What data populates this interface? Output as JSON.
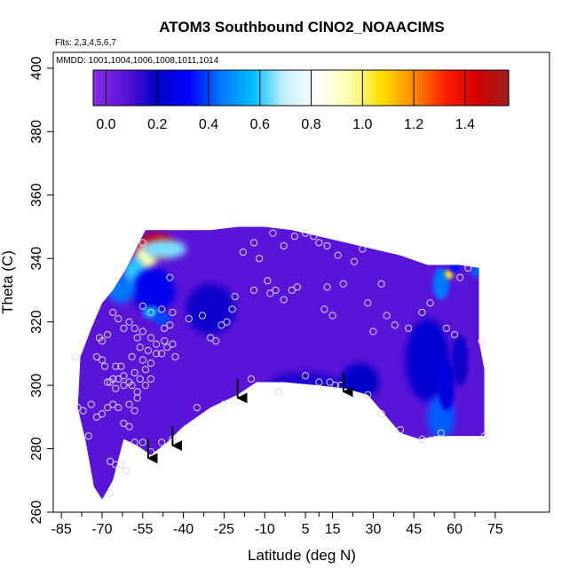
{
  "chart_data": {
    "type": "heatmap",
    "title": "ATOM3 Southbound ClNO2_NOAACIMS",
    "subtitle_flights": "Flts: 2,3,4,5,6,7",
    "subtitle_dates": "MMDD: 1001,1004,1006,1008,1011,1014",
    "xlabel": "Latitude (deg N)",
    "ylabel": "Theta (C)",
    "xlim": [
      -88,
      95
    ],
    "ylim": [
      260,
      405
    ],
    "x_ticks": [
      -85,
      -70,
      -55,
      -40,
      -25,
      -10,
      5,
      15,
      30,
      45,
      60,
      75
    ],
    "x_tick_labels": [
      "-85",
      "-70",
      "-55",
      "-40",
      "-25",
      "-10",
      "5",
      "15",
      "30",
      "45",
      "60",
      "75"
    ],
    "y_ticks": [
      260,
      280,
      300,
      320,
      340,
      360,
      380,
      400
    ],
    "y_tick_labels": [
      "260",
      "280",
      "300",
      "320",
      "340",
      "360",
      "380",
      "400"
    ],
    "colorbar_ticks": [
      0.0,
      0.2,
      0.4,
      0.6,
      0.8,
      1.0,
      1.2,
      1.4
    ],
    "colorbar_tick_labels": [
      "0.0",
      "0.2",
      "0.4",
      "0.6",
      "0.8",
      "1.0",
      "1.2",
      "1.4"
    ],
    "colorbar_range": [
      -0.05,
      1.57
    ],
    "colormap": [
      "#8a2be2",
      "#5a14d8",
      "#0000c8",
      "#0000ff",
      "#0078ff",
      "#00bfff",
      "#c8f0ff",
      "#ffffff",
      "#ffffb0",
      "#ffe000",
      "#ff8c00",
      "#ff2000",
      "#d40000",
      "#a02020"
    ],
    "field_color": "#5a14d8",
    "outline": [
      [
        -78,
        309
      ],
      [
        -79,
        293
      ],
      [
        -76,
        282
      ],
      [
        -73,
        268
      ],
      [
        -70,
        264
      ],
      [
        -66,
        270
      ],
      [
        -62,
        283
      ],
      [
        -57,
        281
      ],
      [
        -52,
        278
      ],
      [
        -46,
        282
      ],
      [
        -40,
        287
      ],
      [
        -30,
        293
      ],
      [
        -20,
        297
      ],
      [
        -13,
        301
      ],
      [
        -3,
        301
      ],
      [
        10,
        300
      ],
      [
        20,
        299
      ],
      [
        28,
        297
      ],
      [
        35,
        290
      ],
      [
        40,
        285
      ],
      [
        47,
        283
      ],
      [
        53,
        284
      ],
      [
        71,
        284
      ],
      [
        71,
        305
      ],
      [
        69,
        314
      ],
      [
        69,
        337
      ],
      [
        62,
        338
      ],
      [
        50,
        338
      ],
      [
        40,
        341
      ],
      [
        30,
        343
      ],
      [
        20,
        345
      ],
      [
        10,
        347
      ],
      [
        0,
        349
      ],
      [
        -10,
        350
      ],
      [
        -20,
        350
      ],
      [
        -30,
        349
      ],
      [
        -40,
        349
      ],
      [
        -54,
        349
      ],
      [
        -57,
        344
      ],
      [
        -61,
        337
      ],
      [
        -66,
        330
      ],
      [
        -70,
        326
      ],
      [
        -74,
        318
      ]
    ],
    "anomalies": [
      {
        "x": -50,
        "y": 344,
        "rx": 7,
        "ry": 4,
        "value": 1.45
      },
      {
        "x": -54,
        "y": 340,
        "rx": 4,
        "ry": 4,
        "value": 0.95
      },
      {
        "x": -58,
        "y": 335,
        "rx": 4,
        "ry": 5,
        "value": 0.6
      },
      {
        "x": -47,
        "y": 343,
        "rx": 8,
        "ry": 3,
        "value": 0.65
      },
      {
        "x": -51,
        "y": 330,
        "rx": 8,
        "ry": 7,
        "value": 0.28
      },
      {
        "x": -63,
        "y": 330,
        "rx": 5,
        "ry": 4,
        "value": 0.45
      },
      {
        "x": -52,
        "y": 323,
        "rx": 3,
        "ry": 2,
        "value": 0.5
      },
      {
        "x": -48,
        "y": 321,
        "rx": 3,
        "ry": 2,
        "value": 0.4
      },
      {
        "x": -30,
        "y": 324,
        "rx": 9,
        "ry": 8,
        "value": 0.18
      },
      {
        "x": 5,
        "y": 300,
        "rx": 14,
        "ry": 4,
        "value": 0.16
      },
      {
        "x": 25,
        "y": 301,
        "rx": 7,
        "ry": 6,
        "value": 0.2
      },
      {
        "x": 50,
        "y": 308,
        "rx": 8,
        "ry": 13,
        "value": 0.22
      },
      {
        "x": 55,
        "y": 290,
        "rx": 5,
        "ry": 7,
        "value": 0.42
      },
      {
        "x": 57,
        "y": 300,
        "rx": 3,
        "ry": 8,
        "value": 0.25
      },
      {
        "x": 62,
        "y": 308,
        "rx": 3,
        "ry": 8,
        "value": 0.18
      },
      {
        "x": 55,
        "y": 332,
        "rx": 3,
        "ry": 5,
        "value": 0.45
      },
      {
        "x": 58,
        "y": 335,
        "rx": 1.5,
        "ry": 1.5,
        "value": 1.05
      },
      {
        "x": 60,
        "y": 337,
        "rx": 2,
        "ry": 1.5,
        "value": 0.35
      },
      {
        "x": 68,
        "y": 336,
        "rx": 2,
        "ry": 2,
        "value": 0.42
      }
    ],
    "data_points": [
      [
        -71,
        315
      ],
      [
        -70,
        308
      ],
      [
        -69,
        306
      ],
      [
        -68,
        301
      ],
      [
        -67,
        301
      ],
      [
        -66,
        302
      ],
      [
        -65,
        299
      ],
      [
        -64,
        302
      ],
      [
        -62,
        303
      ],
      [
        -60,
        301
      ],
      [
        -59,
        300
      ],
      [
        -58,
        304
      ],
      [
        -56,
        302
      ],
      [
        -55,
        308
      ],
      [
        -54,
        305
      ],
      [
        -52,
        307
      ],
      [
        -50,
        310
      ],
      [
        -48,
        310
      ],
      [
        -46,
        312
      ],
      [
        -44,
        313
      ],
      [
        -43,
        309
      ],
      [
        -47,
        314
      ],
      [
        -50,
        313
      ],
      [
        -52,
        315
      ],
      [
        -55,
        317
      ],
      [
        -57,
        315
      ],
      [
        -58,
        318
      ],
      [
        -60,
        320
      ],
      [
        -62,
        318
      ],
      [
        -64,
        321
      ],
      [
        -66,
        323
      ],
      [
        -68,
        316
      ],
      [
        -70,
        314
      ],
      [
        -72,
        309
      ],
      [
        -74,
        294
      ],
      [
        -72,
        290
      ],
      [
        -70,
        291
      ],
      [
        -68,
        293
      ],
      [
        -66,
        294
      ],
      [
        -64,
        293
      ],
      [
        -62,
        288
      ],
      [
        -60,
        287
      ],
      [
        -58,
        282
      ],
      [
        -55,
        282
      ],
      [
        -52,
        279
      ],
      [
        -48,
        282
      ],
      [
        -44,
        283
      ],
      [
        -62,
        300
      ],
      [
        -60,
        294
      ],
      [
        -57,
        298
      ],
      [
        -67,
        276
      ],
      [
        -65,
        275
      ],
      [
        -63,
        275
      ],
      [
        -61,
        273
      ],
      [
        -67,
        266
      ],
      [
        -75,
        284
      ],
      [
        -77,
        292
      ],
      [
        -79,
        293
      ],
      [
        -80,
        309
      ],
      [
        -57,
        296
      ],
      [
        -63,
        306
      ],
      [
        -65,
        306
      ],
      [
        -59,
        309
      ],
      [
        -55,
        325
      ],
      [
        -52,
        323
      ],
      [
        -48,
        324
      ],
      [
        -44,
        323
      ],
      [
        -38,
        321
      ],
      [
        -33,
        322
      ],
      [
        -30,
        315
      ],
      [
        -28,
        314
      ],
      [
        -26,
        319
      ],
      [
        -24,
        320
      ],
      [
        -22,
        324
      ],
      [
        -21,
        328
      ],
      [
        -14,
        330
      ],
      [
        -8,
        329
      ],
      [
        -6,
        330
      ],
      [
        -3,
        327
      ],
      [
        0,
        330
      ],
      [
        2,
        331
      ],
      [
        -9,
        333
      ],
      [
        -12,
        340
      ],
      [
        -18,
        342
      ],
      [
        -14,
        345
      ],
      [
        -7,
        348
      ],
      [
        -3,
        344
      ],
      [
        1,
        347
      ],
      [
        5,
        348
      ],
      [
        8,
        347
      ],
      [
        10,
        345
      ],
      [
        13,
        344
      ],
      [
        17,
        341
      ],
      [
        13,
        331
      ],
      [
        12,
        324
      ],
      [
        15,
        322
      ],
      [
        19,
        332
      ],
      [
        23,
        339
      ],
      [
        26,
        343
      ],
      [
        28,
        326
      ],
      [
        30,
        317
      ],
      [
        33,
        332
      ],
      [
        35,
        322
      ],
      [
        38,
        319
      ],
      [
        43,
        318
      ],
      [
        48,
        323
      ],
      [
        51,
        326
      ],
      [
        57,
        318
      ],
      [
        60,
        316
      ],
      [
        62,
        334
      ],
      [
        65,
        337
      ],
      [
        70,
        314
      ],
      [
        -5,
        298
      ],
      [
        5,
        303
      ],
      [
        10,
        301
      ],
      [
        14,
        301
      ],
      [
        16,
        300
      ],
      [
        18,
        300
      ],
      [
        28,
        297
      ],
      [
        33,
        291
      ],
      [
        40,
        286
      ],
      [
        48,
        283
      ],
      [
        55,
        285
      ],
      [
        71,
        284
      ],
      [
        -15,
        302
      ],
      [
        -25,
        294
      ],
      [
        -35,
        293
      ],
      [
        -47,
        318
      ],
      [
        -45,
        319
      ],
      [
        -53,
        311
      ],
      [
        -56,
        312
      ],
      [
        -52,
        302
      ],
      [
        -54,
        300
      ],
      [
        -58,
        292
      ],
      [
        -45,
        334
      ],
      [
        -55,
        345
      ]
    ],
    "arrows": [
      [
        -53,
        283
      ],
      [
        -44,
        287
      ],
      [
        -20,
        302
      ],
      [
        19,
        304
      ]
    ]
  }
}
